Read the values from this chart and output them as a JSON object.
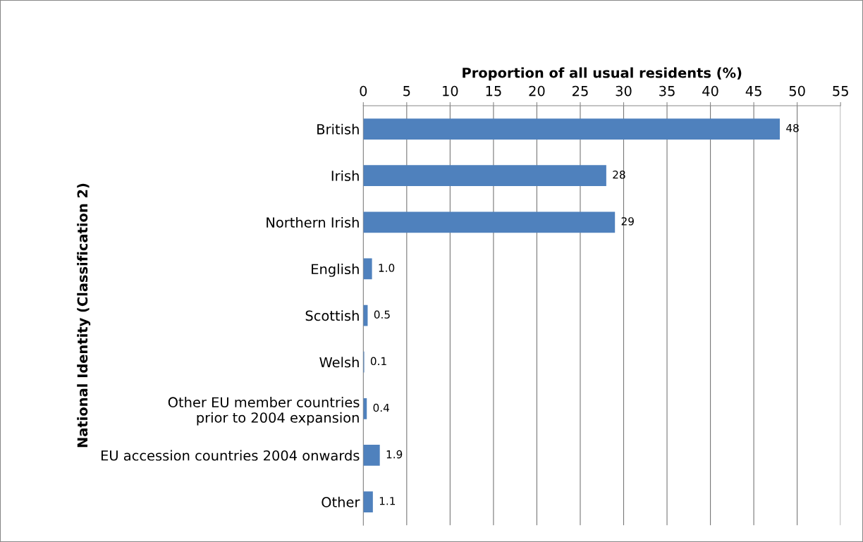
{
  "chart_data": {
    "type": "bar",
    "orientation": "horizontal",
    "xlabel": "Proportion of all usual residents (%)",
    "ylabel": "National Identity (Classification 2)",
    "categories": [
      "British",
      "Irish",
      "Northern Irish",
      "English",
      "Scottish",
      "Welsh",
      "Other EU member countries\nprior to 2004 expansion",
      "EU accession countries 2004 onwards",
      "Other"
    ],
    "values": [
      48,
      28,
      29,
      1.0,
      0.5,
      0.1,
      0.4,
      1.9,
      1.1
    ],
    "value_labels": [
      "48",
      "28",
      "29",
      "1.0",
      "0.5",
      "0.1",
      "0.4",
      "1.9",
      "1.1"
    ],
    "color": "#4f81bd",
    "xlim": [
      0,
      55
    ],
    "xticks": [
      0,
      5,
      10,
      15,
      20,
      25,
      30,
      35,
      40,
      45,
      50,
      55
    ],
    "grid": "x",
    "legend": false
  }
}
